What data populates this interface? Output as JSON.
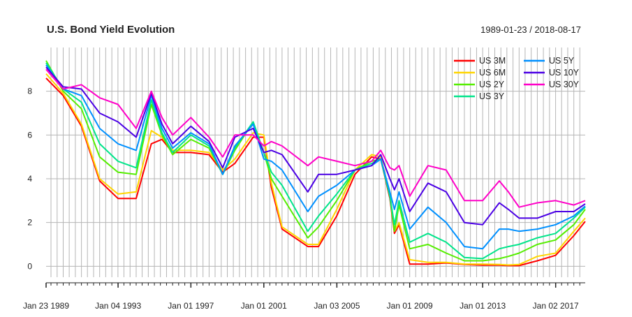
{
  "chart_data": {
    "type": "line",
    "title": "U.S. Bond Yield Evolution",
    "date_range": "1989-01-23 / 2018-08-17",
    "x_start": "1989-01-23",
    "x_end": "2018-08-17",
    "ylim": [
      -0.5,
      10
    ],
    "yticks": [
      0,
      2,
      4,
      6,
      8
    ],
    "xtick_labels": [
      {
        "date": "1989-01-23",
        "label": "Jan 23 1989"
      },
      {
        "date": "1993-01-04",
        "label": "Jan 04 1993"
      },
      {
        "date": "1997-01-01",
        "label": "Jan 01 1997"
      },
      {
        "date": "2001-01-01",
        "label": "Jan 01 2001"
      },
      {
        "date": "2005-01-03",
        "label": "Jan 03 2005"
      },
      {
        "date": "2009-01-01",
        "label": "Jan 01 2009"
      },
      {
        "date": "2013-01-01",
        "label": "Jan 01 2013"
      },
      {
        "date": "2017-01-02",
        "label": "Jan 02 2017"
      }
    ],
    "grid": true,
    "legend_position": "top-right",
    "x": [
      "1989-01-23",
      "1990-01-01",
      "1991-01-01",
      "1992-01-01",
      "1993-01-01",
      "1994-01-01",
      "1994-11-01",
      "1995-06-01",
      "1996-01-01",
      "1997-01-01",
      "1998-01-01",
      "1998-10-01",
      "1999-06-01",
      "2000-06-01",
      "2001-01-01",
      "2001-06-01",
      "2002-01-01",
      "2003-06-01",
      "2004-01-01",
      "2005-01-01",
      "2006-01-01",
      "2006-12-01",
      "2007-06-01",
      "2007-12-01",
      "2008-03-01",
      "2008-06-01",
      "2009-01-01",
      "2010-01-01",
      "2011-01-01",
      "2012-01-01",
      "2013-01-01",
      "2013-12-01",
      "2014-06-01",
      "2015-01-01",
      "2016-01-01",
      "2017-01-01",
      "2018-01-01",
      "2018-08-17"
    ],
    "series": [
      {
        "name": "US 3M",
        "color": "#ff0000",
        "values": [
          8.6,
          7.8,
          6.4,
          3.9,
          3.1,
          3.1,
          5.6,
          5.8,
          5.2,
          5.2,
          5.1,
          4.3,
          4.7,
          5.9,
          5.9,
          3.6,
          1.7,
          0.9,
          0.9,
          2.3,
          4.2,
          5.0,
          4.9,
          3.1,
          1.5,
          1.9,
          0.1,
          0.1,
          0.15,
          0.08,
          0.05,
          0.05,
          0.03,
          0.03,
          0.25,
          0.5,
          1.4,
          2.05
        ]
      },
      {
        "name": "US 6M",
        "color": "#ffd500",
        "values": [
          8.8,
          7.9,
          6.5,
          4.0,
          3.3,
          3.4,
          6.2,
          5.9,
          5.3,
          5.3,
          5.2,
          4.4,
          4.9,
          6.1,
          6.0,
          3.8,
          1.8,
          1.0,
          1.0,
          2.6,
          4.4,
          5.1,
          5.0,
          3.3,
          1.6,
          2.0,
          0.3,
          0.18,
          0.18,
          0.1,
          0.1,
          0.08,
          0.06,
          0.08,
          0.45,
          0.6,
          1.6,
          2.2
        ]
      },
      {
        "name": "US 2Y",
        "color": "#55ee00",
        "values": [
          9.4,
          8.0,
          7.2,
          5.0,
          4.3,
          4.2,
          7.4,
          6.0,
          5.1,
          5.8,
          5.4,
          4.2,
          5.3,
          6.6,
          5.2,
          4.0,
          3.2,
          1.3,
          1.8,
          3.0,
          4.4,
          4.8,
          4.9,
          3.2,
          1.6,
          2.8,
          0.8,
          1.0,
          0.6,
          0.25,
          0.25,
          0.35,
          0.45,
          0.6,
          1.0,
          1.2,
          1.9,
          2.6
        ]
      },
      {
        "name": "US 3Y",
        "color": "#00e58a",
        "values": [
          9.3,
          8.1,
          7.5,
          5.6,
          4.8,
          4.5,
          7.6,
          6.1,
          5.2,
          6.0,
          5.5,
          4.2,
          5.4,
          6.6,
          5.2,
          4.3,
          3.7,
          1.6,
          2.3,
          3.3,
          4.4,
          4.7,
          4.9,
          3.2,
          1.9,
          3.0,
          1.1,
          1.5,
          1.1,
          0.4,
          0.35,
          0.8,
          0.9,
          1.0,
          1.3,
          1.5,
          2.2,
          2.7
        ]
      },
      {
        "name": "US 5Y",
        "color": "#0090ff",
        "values": [
          9.2,
          8.1,
          7.8,
          6.3,
          5.6,
          5.3,
          7.8,
          6.3,
          5.4,
          6.1,
          5.6,
          4.2,
          5.5,
          6.5,
          4.9,
          4.8,
          4.4,
          2.5,
          3.2,
          3.7,
          4.4,
          4.6,
          4.9,
          3.4,
          2.6,
          3.4,
          1.7,
          2.7,
          2.0,
          0.9,
          0.8,
          1.7,
          1.7,
          1.6,
          1.7,
          1.9,
          2.3,
          2.75
        ]
      },
      {
        "name": "US 10Y",
        "color": "#4b00e5",
        "values": [
          9.1,
          8.2,
          8.1,
          7.0,
          6.6,
          5.9,
          7.9,
          6.5,
          5.6,
          6.4,
          5.7,
          4.5,
          5.9,
          6.3,
          5.2,
          5.3,
          5.1,
          3.4,
          4.2,
          4.2,
          4.4,
          4.6,
          5.1,
          4.0,
          3.5,
          4.0,
          2.5,
          3.8,
          3.4,
          2.0,
          1.9,
          2.9,
          2.6,
          2.2,
          2.2,
          2.5,
          2.5,
          2.85
        ]
      },
      {
        "name": "US 30Y",
        "color": "#ff00c8",
        "values": [
          9.0,
          8.1,
          8.3,
          7.7,
          7.4,
          6.3,
          8.0,
          6.8,
          6.0,
          6.8,
          5.9,
          5.0,
          6.0,
          6.0,
          5.5,
          5.7,
          5.5,
          4.6,
          5.0,
          4.8,
          4.6,
          4.8,
          5.3,
          4.5,
          4.4,
          4.6,
          3.2,
          4.6,
          4.4,
          3.0,
          3.0,
          3.9,
          3.4,
          2.7,
          2.9,
          3.0,
          2.8,
          3.0
        ]
      }
    ]
  }
}
